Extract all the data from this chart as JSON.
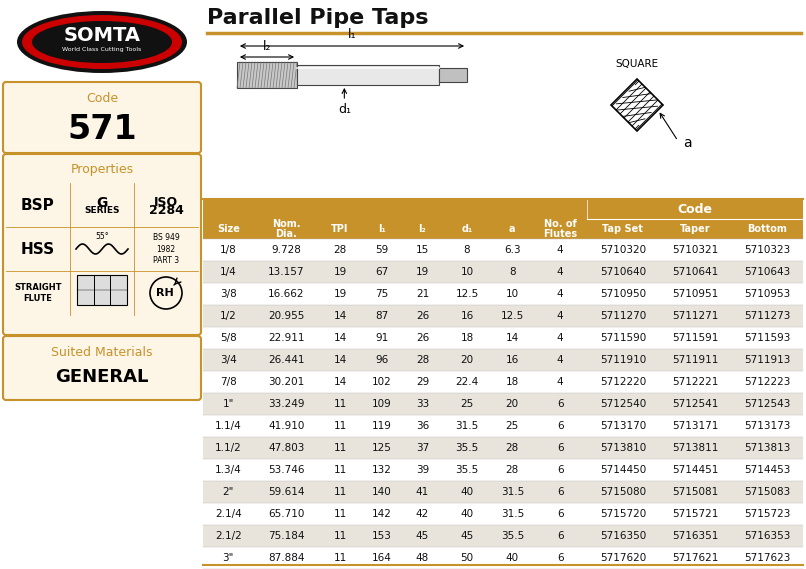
{
  "title": "Parallel Pipe Taps",
  "code": "571",
  "header_color": "#C8922A",
  "header_text_color": "#FFFFFF",
  "row_color_odd": "#FFFFFF",
  "row_color_even": "#E8E4DC",
  "bg_color": "#FFFFFF",
  "left_panel_bg": "#FDF5E6",
  "left_panel_border": "#C8922A",
  "rows": [
    [
      "1/8",
      "9.728",
      "28",
      "59",
      "15",
      "8",
      "6.3",
      "4",
      "5710320",
      "5710321",
      "5710323"
    ],
    [
      "1/4",
      "13.157",
      "19",
      "67",
      "19",
      "10",
      "8",
      "4",
      "5710640",
      "5710641",
      "5710643"
    ],
    [
      "3/8",
      "16.662",
      "19",
      "75",
      "21",
      "12.5",
      "10",
      "4",
      "5710950",
      "5710951",
      "5710953"
    ],
    [
      "1/2",
      "20.955",
      "14",
      "87",
      "26",
      "16",
      "12.5",
      "4",
      "5711270",
      "5711271",
      "5711273"
    ],
    [
      "5/8",
      "22.911",
      "14",
      "91",
      "26",
      "18",
      "14",
      "4",
      "5711590",
      "5711591",
      "5711593"
    ],
    [
      "3/4",
      "26.441",
      "14",
      "96",
      "28",
      "20",
      "16",
      "4",
      "5711910",
      "5711911",
      "5711913"
    ],
    [
      "7/8",
      "30.201",
      "14",
      "102",
      "29",
      "22.4",
      "18",
      "4",
      "5712220",
      "5712221",
      "5712223"
    ],
    [
      "1\"",
      "33.249",
      "11",
      "109",
      "33",
      "25",
      "20",
      "6",
      "5712540",
      "5712541",
      "5712543"
    ],
    [
      "1.1/4",
      "41.910",
      "11",
      "119",
      "36",
      "31.5",
      "25",
      "6",
      "5713170",
      "5713171",
      "5713173"
    ],
    [
      "1.1/2",
      "47.803",
      "11",
      "125",
      "37",
      "35.5",
      "28",
      "6",
      "5713810",
      "5713811",
      "5713813"
    ],
    [
      "1.3/4",
      "53.746",
      "11",
      "132",
      "39",
      "35.5",
      "28",
      "6",
      "5714450",
      "5714451",
      "5714453"
    ],
    [
      "2\"",
      "59.614",
      "11",
      "140",
      "41",
      "40",
      "31.5",
      "6",
      "5715080",
      "5715081",
      "5715083"
    ],
    [
      "2.1/4",
      "65.710",
      "11",
      "142",
      "42",
      "40",
      "31.5",
      "6",
      "5715720",
      "5715721",
      "5715723"
    ],
    [
      "2.1/2",
      "75.184",
      "11",
      "153",
      "45",
      "45",
      "35.5",
      "6",
      "5716350",
      "5716351",
      "5716353"
    ],
    [
      "3\"",
      "87.884",
      "11",
      "164",
      "48",
      "50",
      "40",
      "6",
      "5717620",
      "5717621",
      "5717623"
    ]
  ],
  "somta_red": "#CC0000",
  "somta_black": "#1A1A1A",
  "title_underline_color": "#C8922A"
}
